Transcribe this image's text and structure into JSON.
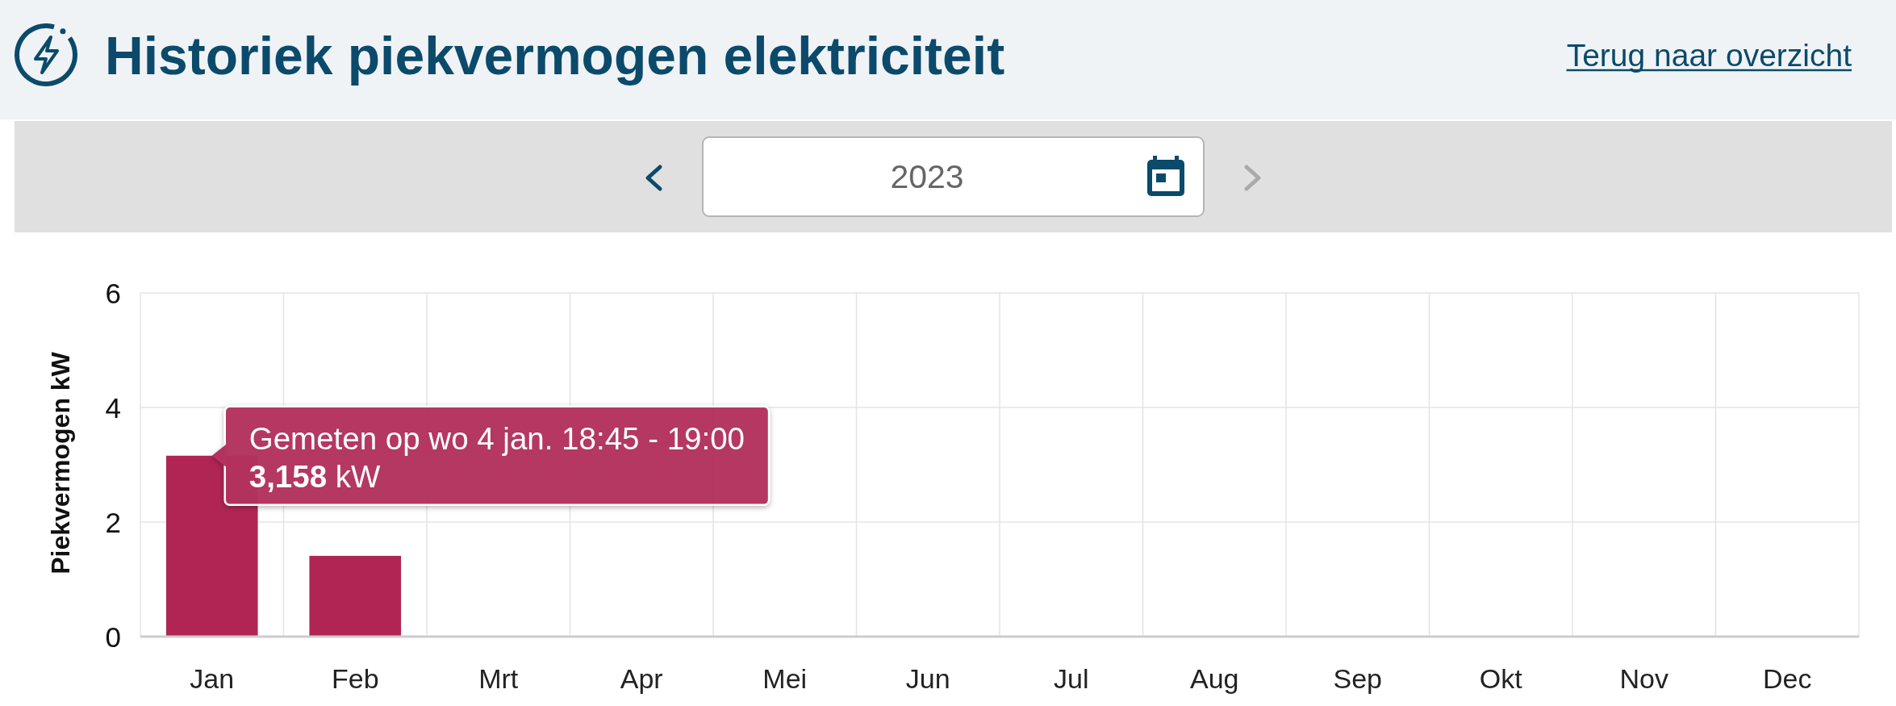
{
  "chart_data": {
    "type": "bar",
    "title": "Historiek piekvermogen elektriciteit",
    "subtitle": "2023",
    "ylabel": "Piekvermogen kW",
    "categories": [
      "Jan",
      "Feb",
      "Mrt",
      "Apr",
      "Mei",
      "Jun",
      "Jul",
      "Aug",
      "Sep",
      "Okt",
      "Nov",
      "Dec"
    ],
    "values": [
      3.158,
      1.41,
      null,
      null,
      null,
      null,
      null,
      null,
      null,
      null,
      null,
      null
    ],
    "color": "#b02554",
    "ylim": [
      0,
      6
    ],
    "yticks": [
      0,
      2,
      4,
      6
    ],
    "grid": true,
    "annotations": [
      "Terug naar overzicht",
      {
        "text": "Gemeten op wo 4 jan. 18:45 - 19:00\n3,158 kW",
        "x": "Jan",
        "y": 3.158
      }
    ]
  }
}
